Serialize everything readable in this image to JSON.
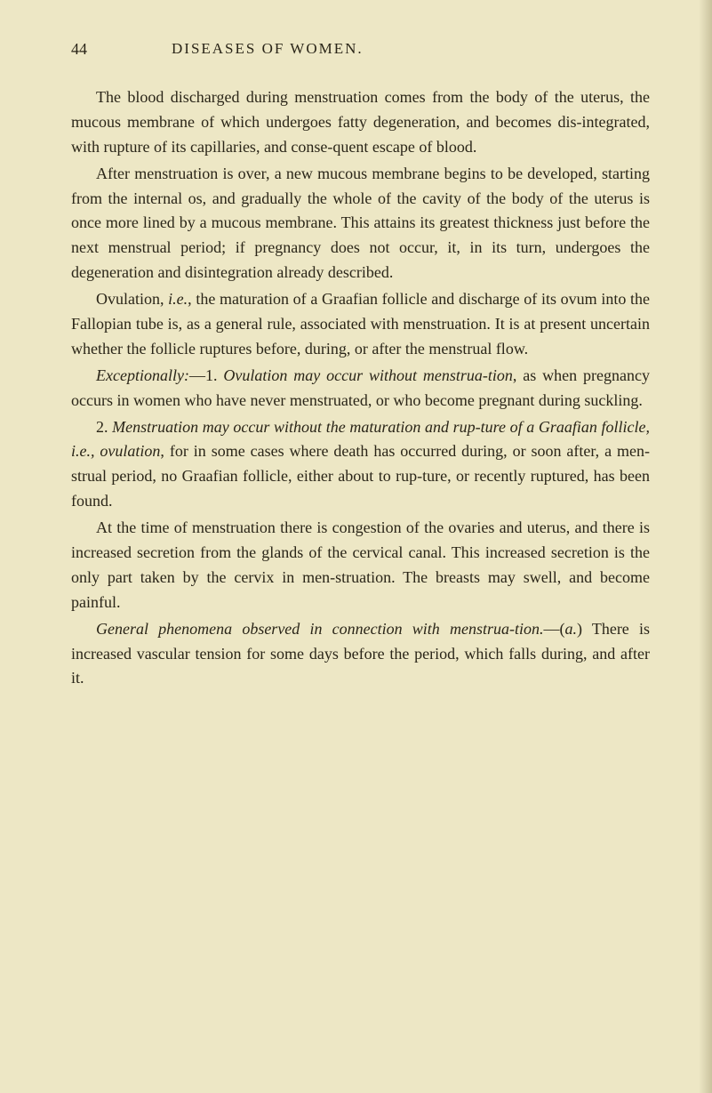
{
  "header": {
    "page_number": "44",
    "running_title": "DISEASES OF WOMEN."
  },
  "paragraphs": {
    "p1": "The blood discharged during menstruation comes from the body of the uterus, the mucous membrane of which undergoes fatty degeneration, and becomes dis-integrated, with rupture of its capillaries, and conse-quent escape of blood.",
    "p2": "After menstruation is over, a new mucous membrane begins to be developed, starting from the internal os, and gradually the whole of the cavity of the body of the uterus is once more lined by a mucous membrane. This attains its greatest thickness just before the next menstrual period; if pregnancy does not occur, it, in its turn, undergoes the degeneration and disintegration already described.",
    "p3_a": "Ovulation, ",
    "p3_b": "i.e.",
    "p3_c": ", the maturation of a Graafian follicle and discharge of its ovum into the Fallopian tube is, as a general rule, associated with menstruation. It is at present uncertain whether the follicle ruptures before, during, or after the menstrual flow.",
    "p4_a": "Exceptionally:",
    "p4_b": "—1. ",
    "p4_c": "Ovulation may occur without menstrua-tion",
    "p4_d": ", as when pregnancy occurs in women who have never menstruated, or who become pregnant during suckling.",
    "p5_a": "2. ",
    "p5_b": "Menstruation may occur without the maturation and rup-ture of a Graafian follicle, i.e., ovulation",
    "p5_c": ", for in some cases where death has occurred during, or soon after, a men-strual period, no Graafian follicle, either about to rup-ture, or recently ruptured, has been found.",
    "p6": "At the time of menstruation there is congestion of the ovaries and uterus, and there is increased secretion from the glands of the cervical canal. This increased secretion is the only part taken by the cervix in men-struation. The breasts may swell, and become painful.",
    "p7_a": "General phenomena observed in connection with menstrua-tion.",
    "p7_b": "—(",
    "p7_c": "a.",
    "p7_d": ") There is increased vascular tension for some days before the period, which falls during, and after it."
  },
  "colors": {
    "background": "#ede7c5",
    "text": "#2a2518"
  },
  "typography": {
    "body_fontsize": 18,
    "header_fontsize": 18,
    "line_height": 1.55,
    "font_family": "Georgia, serif"
  }
}
